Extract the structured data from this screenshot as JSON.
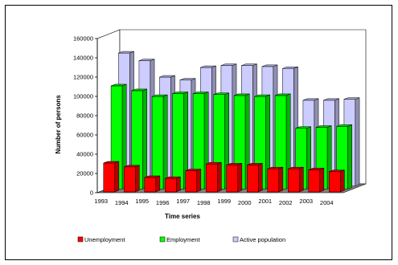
{
  "chart_data": {
    "type": "bar",
    "variant": "3d-depth",
    "title": "",
    "xlabel": "Time series",
    "ylabel": "Number of persons",
    "ylim": [
      0,
      160000
    ],
    "ytick_step": 20000,
    "yticks": [
      "0",
      "20000",
      "40000",
      "60000",
      "80000",
      "100000",
      "120000",
      "140000",
      "160000"
    ],
    "categories": [
      "1993",
      "1994",
      "1995",
      "1996",
      "1997",
      "1998",
      "1999",
      "2000",
      "2001",
      "2002",
      "2003",
      "2004"
    ],
    "series": [
      {
        "name": "Unemployment",
        "color": "#ff0000",
        "values": [
          30000,
          26000,
          15000,
          14000,
          22000,
          29000,
          28000,
          28000,
          24000,
          24000,
          23000,
          21000
        ]
      },
      {
        "name": "Employment",
        "color": "#00ff00",
        "values": [
          107000,
          102000,
          96000,
          99000,
          99000,
          98000,
          97000,
          96000,
          97000,
          63000,
          64000,
          65000
        ]
      },
      {
        "name": "Active population",
        "color": "#ccccff",
        "values": [
          138000,
          130000,
          113000,
          110000,
          123000,
          125000,
          125000,
          124000,
          122000,
          89000,
          89000,
          90000
        ]
      }
    ],
    "legend_position": "bottom",
    "grid": false
  }
}
